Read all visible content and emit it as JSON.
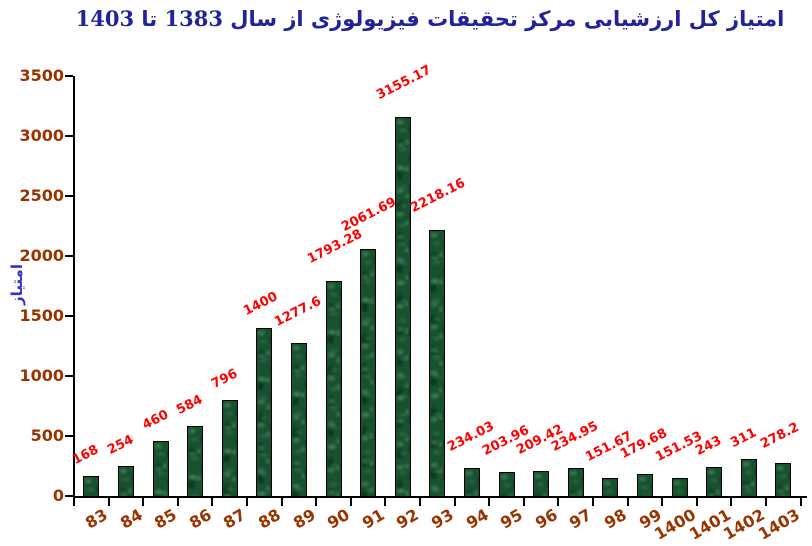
{
  "chart_data": {
    "type": "bar",
    "title": "امتیاز کل ارزشیابی مرکز تحقیقات فیزیولوژی از سال 1383 تا 1403",
    "xlabel": "",
    "ylabel": "امتیاز",
    "categories": [
      "83",
      "84",
      "85",
      "86",
      "87",
      "88",
      "89",
      "90",
      "91",
      "92",
      "93",
      "94",
      "95",
      "96",
      "97",
      "98",
      "99",
      "1400",
      "1401",
      "1402",
      "1403"
    ],
    "values": [
      168,
      254,
      460,
      584,
      796,
      1400,
      1277.6,
      1793.28,
      2061.69,
      3155.17,
      2218.16,
      234.03,
      203.96,
      209.42,
      234.95,
      151.67,
      179.68,
      151.53,
      243,
      311,
      278.2
    ],
    "data_labels": [
      "168",
      "254",
      "460",
      "584",
      "796",
      "1400",
      "1277.6",
      "1793.28",
      "2061.69",
      "3155.17",
      "2218.16",
      "234.03",
      "203.96",
      "209.42",
      "234.95",
      "151.67",
      "179.68",
      "151.53",
      "243",
      "311",
      "278.2"
    ],
    "yticks": [
      0,
      500,
      1000,
      1500,
      2000,
      2500,
      3000,
      3500
    ],
    "ylim": [
      0,
      3500
    ],
    "grid": false,
    "legend": "none",
    "colors": {
      "title": "#222299",
      "ylabel_text": "#3333cc",
      "axis_labels": "#993300",
      "data_labels": "#ff0000",
      "bar_fill": "#17522e",
      "bar_border": "#000000",
      "background": "#ffffff"
    }
  }
}
